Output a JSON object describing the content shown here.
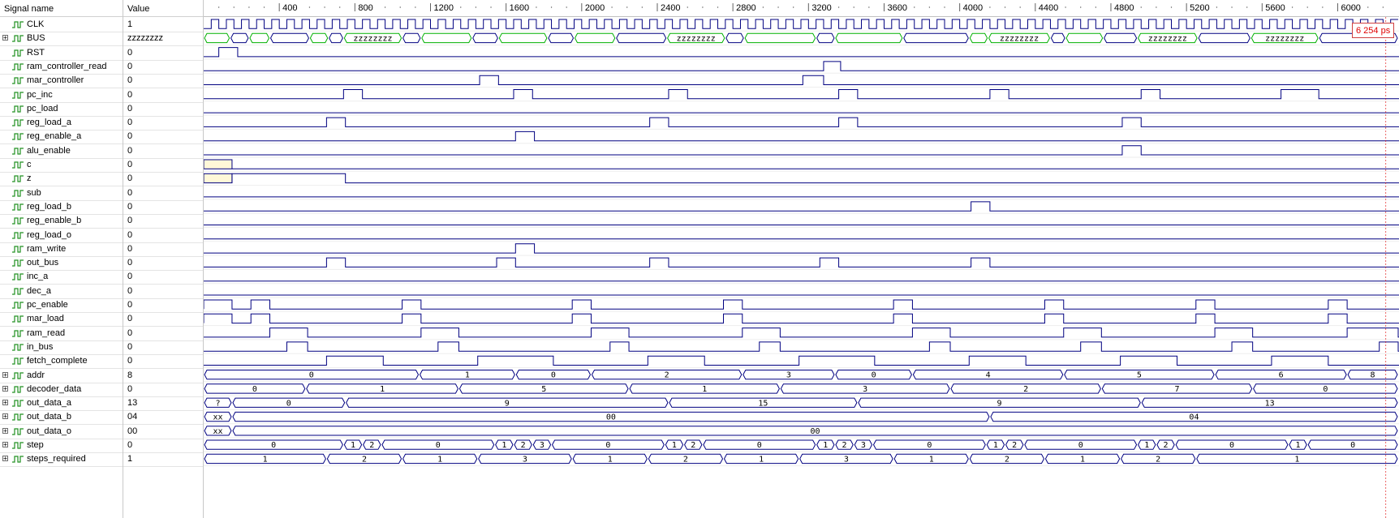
{
  "header": {
    "signal_name": "Signal name",
    "value": "Value"
  },
  "timeline": {
    "unit": "ps",
    "end_time": 6320,
    "labels": [
      400,
      800,
      1200,
      1600,
      2000,
      2400,
      2800,
      3200,
      3600,
      4000,
      4400,
      4800,
      5200,
      5600,
      6000
    ],
    "cursor_time": 6254,
    "cursor_label": "6 254 ps"
  },
  "colors": {
    "wave": "#000080",
    "highz": "#00b000",
    "unknown_fill": "#fff8d8",
    "cursor": "#e00000"
  },
  "signals": [
    {
      "name": "CLK",
      "value": "1",
      "kind": "clock",
      "period": 80,
      "expandable": false
    },
    {
      "name": "BUS",
      "value": "zzzzzzzz",
      "kind": "bus",
      "expandable": true,
      "segments": [
        {
          "t0": 0,
          "t1": 140,
          "label": "",
          "style": "green"
        },
        {
          "t0": 140,
          "t1": 240,
          "label": "",
          "style": "blue"
        },
        {
          "t0": 240,
          "t1": 350,
          "label": "",
          "style": "green"
        },
        {
          "t0": 350,
          "t1": 560,
          "label": "",
          "style": "blue"
        },
        {
          "t0": 560,
          "t1": 660,
          "label": "",
          "style": "green"
        },
        {
          "t0": 660,
          "t1": 740,
          "label": "",
          "style": "blue"
        },
        {
          "t0": 740,
          "t1": 1050,
          "label": "zzzzzzzz",
          "style": "green"
        },
        {
          "t0": 1050,
          "t1": 1150,
          "label": "",
          "style": "blue"
        },
        {
          "t0": 1150,
          "t1": 1420,
          "label": "",
          "style": "green"
        },
        {
          "t0": 1420,
          "t1": 1560,
          "label": "",
          "style": "blue"
        },
        {
          "t0": 1560,
          "t1": 1820,
          "label": "",
          "style": "green"
        },
        {
          "t0": 1820,
          "t1": 1960,
          "label": "",
          "style": "blue"
        },
        {
          "t0": 1960,
          "t1": 2180,
          "label": "",
          "style": "green"
        },
        {
          "t0": 2180,
          "t1": 2450,
          "label": "",
          "style": "blue"
        },
        {
          "t0": 2450,
          "t1": 2760,
          "label": "zzzzzzzz",
          "style": "green"
        },
        {
          "t0": 2760,
          "t1": 2860,
          "label": "",
          "style": "blue"
        },
        {
          "t0": 2860,
          "t1": 3240,
          "label": "",
          "style": "green"
        },
        {
          "t0": 3240,
          "t1": 3340,
          "label": "",
          "style": "blue"
        },
        {
          "t0": 3340,
          "t1": 3700,
          "label": "",
          "style": "green"
        },
        {
          "t0": 3700,
          "t1": 4050,
          "label": "",
          "style": "blue"
        },
        {
          "t0": 4050,
          "t1": 4150,
          "label": "",
          "style": "green"
        },
        {
          "t0": 4150,
          "t1": 4480,
          "label": "zzzzzzzz",
          "style": "green"
        },
        {
          "t0": 4480,
          "t1": 4560,
          "label": "",
          "style": "blue"
        },
        {
          "t0": 4560,
          "t1": 4760,
          "label": "",
          "style": "green"
        },
        {
          "t0": 4760,
          "t1": 4940,
          "label": "",
          "style": "blue"
        },
        {
          "t0": 4940,
          "t1": 5260,
          "label": "zzzzzzzz",
          "style": "green"
        },
        {
          "t0": 5260,
          "t1": 5540,
          "label": "",
          "style": "blue"
        },
        {
          "t0": 5540,
          "t1": 5900,
          "label": "zzzzzzzz",
          "style": "green"
        },
        {
          "t0": 5900,
          "t1": 6320,
          "label": "",
          "style": "blue"
        }
      ]
    },
    {
      "name": "RST",
      "value": "0",
      "kind": "bit",
      "expandable": false,
      "pulses": [
        [
          80,
          180
        ]
      ]
    },
    {
      "name": "ram_controller_read",
      "value": "0",
      "kind": "bit",
      "expandable": false,
      "pulses": [
        [
          3280,
          3370
        ]
      ]
    },
    {
      "name": "mar_controller",
      "value": "0",
      "kind": "bit",
      "expandable": false,
      "pulses": [
        [
          1460,
          1560
        ],
        [
          3170,
          3280
        ]
      ]
    },
    {
      "name": "pc_inc",
      "value": "0",
      "kind": "bit",
      "expandable": false,
      "pulses": [
        [
          740,
          840
        ],
        [
          1640,
          1740
        ],
        [
          2460,
          2560
        ],
        [
          3360,
          3460
        ],
        [
          4160,
          4260
        ],
        [
          4960,
          5060
        ],
        [
          5700,
          5900
        ]
      ]
    },
    {
      "name": "pc_load",
      "value": "0",
      "kind": "bit",
      "expandable": false,
      "pulses": []
    },
    {
      "name": "reg_load_a",
      "value": "0",
      "kind": "bit",
      "expandable": false,
      "pulses": [
        [
          650,
          750
        ],
        [
          2360,
          2460
        ],
        [
          3360,
          3460
        ],
        [
          4860,
          4960
        ]
      ]
    },
    {
      "name": "reg_enable_a",
      "value": "0",
      "kind": "bit",
      "expandable": false,
      "pulses": [
        [
          1650,
          1750
        ]
      ]
    },
    {
      "name": "alu_enable",
      "value": "0",
      "kind": "bit",
      "expandable": false,
      "pulses": [
        [
          4860,
          4960
        ]
      ]
    },
    {
      "name": "c",
      "value": "0",
      "kind": "bit",
      "expandable": false,
      "unknown": [
        0,
        150
      ],
      "pulses": []
    },
    {
      "name": "z",
      "value": "0",
      "kind": "bit",
      "expandable": false,
      "unknown": [
        0,
        150
      ],
      "pulses": [
        [
          0,
          750
        ]
      ]
    },
    {
      "name": "sub",
      "value": "0",
      "kind": "bit",
      "expandable": false,
      "pulses": []
    },
    {
      "name": "reg_load_b",
      "value": "0",
      "kind": "bit",
      "expandable": false,
      "pulses": [
        [
          4060,
          4160
        ]
      ]
    },
    {
      "name": "reg_enable_b",
      "value": "0",
      "kind": "bit",
      "expandable": false,
      "pulses": []
    },
    {
      "name": "reg_load_o",
      "value": "0",
      "kind": "bit",
      "expandable": false,
      "pulses": []
    },
    {
      "name": "ram_write",
      "value": "0",
      "kind": "bit",
      "expandable": false,
      "pulses": [
        [
          1650,
          1750
        ]
      ]
    },
    {
      "name": "out_bus",
      "value": "0",
      "kind": "bit",
      "expandable": false,
      "pulses": [
        [
          650,
          750
        ],
        [
          1550,
          1650
        ],
        [
          2360,
          2460
        ],
        [
          3260,
          3360
        ],
        [
          4060,
          4160
        ]
      ]
    },
    {
      "name": "inc_a",
      "value": "0",
      "kind": "bit",
      "expandable": false,
      "pulses": []
    },
    {
      "name": "dec_a",
      "value": "0",
      "kind": "bit",
      "expandable": false,
      "pulses": []
    },
    {
      "name": "pc_enable",
      "value": "0",
      "kind": "bit",
      "expandable": false,
      "pulses": [
        [
          0,
          150
        ],
        [
          250,
          350
        ],
        [
          1050,
          1150
        ],
        [
          1950,
          2050
        ],
        [
          2750,
          2850
        ],
        [
          3650,
          3750
        ],
        [
          4450,
          4550
        ],
        [
          5250,
          5350
        ],
        [
          5950,
          6050
        ]
      ]
    },
    {
      "name": "mar_load",
      "value": "0",
      "kind": "bit",
      "expandable": false,
      "pulses": [
        [
          0,
          150
        ],
        [
          250,
          350
        ],
        [
          1050,
          1150
        ],
        [
          1950,
          2050
        ],
        [
          2750,
          2850
        ],
        [
          3650,
          3750
        ],
        [
          4450,
          4550
        ],
        [
          5250,
          5350
        ],
        [
          5950,
          6050
        ]
      ]
    },
    {
      "name": "ram_read",
      "value": "0",
      "kind": "bit",
      "expandable": false,
      "pulses": [
        [
          350,
          550
        ],
        [
          1150,
          1350
        ],
        [
          2050,
          2250
        ],
        [
          2850,
          3050
        ],
        [
          3750,
          3950
        ],
        [
          4550,
          4750
        ],
        [
          5350,
          5550
        ],
        [
          6050,
          6320
        ]
      ]
    },
    {
      "name": "in_bus",
      "value": "0",
      "kind": "bit",
      "expandable": false,
      "pulses": [
        [
          440,
          550
        ],
        [
          1240,
          1350
        ],
        [
          2150,
          2250
        ],
        [
          2940,
          3050
        ],
        [
          3840,
          3950
        ],
        [
          4640,
          4750
        ],
        [
          5440,
          5550
        ],
        [
          6220,
          6320
        ]
      ]
    },
    {
      "name": "fetch_complete",
      "value": "0",
      "kind": "bit",
      "expandable": false,
      "pulses": [
        [
          650,
          950
        ],
        [
          1450,
          1850
        ],
        [
          2350,
          2650
        ],
        [
          3150,
          3550
        ],
        [
          4050,
          4350
        ],
        [
          4850,
          5150
        ],
        [
          5650,
          5950
        ]
      ]
    },
    {
      "name": "addr",
      "value": "8",
      "kind": "bus",
      "expandable": true,
      "segments": [
        {
          "t0": 0,
          "t1": 1140,
          "label": "0"
        },
        {
          "t0": 1140,
          "t1": 1650,
          "label": "1"
        },
        {
          "t0": 1650,
          "t1": 2050,
          "label": "0"
        },
        {
          "t0": 2050,
          "t1": 2850,
          "label": "2"
        },
        {
          "t0": 2850,
          "t1": 3340,
          "label": "3"
        },
        {
          "t0": 3340,
          "t1": 3750,
          "label": "0"
        },
        {
          "t0": 3750,
          "t1": 4550,
          "label": "4"
        },
        {
          "t0": 4550,
          "t1": 5350,
          "label": "5"
        },
        {
          "t0": 5350,
          "t1": 6050,
          "label": "6"
        },
        {
          "t0": 6050,
          "t1": 6320,
          "label": "8"
        }
      ]
    },
    {
      "name": "decoder_data",
      "value": "0",
      "kind": "bus",
      "expandable": true,
      "segments": [
        {
          "t0": 0,
          "t1": 540,
          "label": "0"
        },
        {
          "t0": 540,
          "t1": 1350,
          "label": "1"
        },
        {
          "t0": 1350,
          "t1": 2250,
          "label": "5"
        },
        {
          "t0": 2250,
          "t1": 3050,
          "label": "1"
        },
        {
          "t0": 3050,
          "t1": 3950,
          "label": "3"
        },
        {
          "t0": 3950,
          "t1": 4750,
          "label": "2"
        },
        {
          "t0": 4750,
          "t1": 5550,
          "label": "7"
        },
        {
          "t0": 5550,
          "t1": 6320,
          "label": "0"
        }
      ]
    },
    {
      "name": "out_data_a",
      "value": "13",
      "kind": "bus",
      "expandable": true,
      "segments": [
        {
          "t0": 0,
          "t1": 150,
          "label": "?"
        },
        {
          "t0": 150,
          "t1": 750,
          "label": "0"
        },
        {
          "t0": 750,
          "t1": 2460,
          "label": "9"
        },
        {
          "t0": 2460,
          "t1": 3460,
          "label": "15"
        },
        {
          "t0": 3460,
          "t1": 4960,
          "label": "9"
        },
        {
          "t0": 4960,
          "t1": 6320,
          "label": "13"
        }
      ]
    },
    {
      "name": "out_data_b",
      "value": "04",
      "kind": "bus",
      "expandable": true,
      "segments": [
        {
          "t0": 0,
          "t1": 150,
          "label": "xx"
        },
        {
          "t0": 150,
          "t1": 4160,
          "label": "00"
        },
        {
          "t0": 4160,
          "t1": 6320,
          "label": "04"
        }
      ]
    },
    {
      "name": "out_data_o",
      "value": "00",
      "kind": "bus",
      "expandable": true,
      "segments": [
        {
          "t0": 0,
          "t1": 150,
          "label": "xx"
        },
        {
          "t0": 150,
          "t1": 6320,
          "label": "00"
        }
      ]
    },
    {
      "name": "step",
      "value": "0",
      "kind": "bus",
      "expandable": true,
      "segments": [
        {
          "t0": 0,
          "t1": 740,
          "label": "0"
        },
        {
          "t0": 740,
          "t1": 840,
          "label": "1"
        },
        {
          "t0": 840,
          "t1": 940,
          "label": "2"
        },
        {
          "t0": 940,
          "t1": 1540,
          "label": "0"
        },
        {
          "t0": 1540,
          "t1": 1640,
          "label": "1"
        },
        {
          "t0": 1640,
          "t1": 1740,
          "label": "2"
        },
        {
          "t0": 1740,
          "t1": 1840,
          "label": "3"
        },
        {
          "t0": 1840,
          "t1": 2440,
          "label": "0"
        },
        {
          "t0": 2440,
          "t1": 2540,
          "label": "1"
        },
        {
          "t0": 2540,
          "t1": 2640,
          "label": "2"
        },
        {
          "t0": 2640,
          "t1": 3240,
          "label": "0"
        },
        {
          "t0": 3240,
          "t1": 3340,
          "label": "1"
        },
        {
          "t0": 3340,
          "t1": 3440,
          "label": "2"
        },
        {
          "t0": 3440,
          "t1": 3540,
          "label": "3"
        },
        {
          "t0": 3540,
          "t1": 4140,
          "label": "0"
        },
        {
          "t0": 4140,
          "t1": 4240,
          "label": "1"
        },
        {
          "t0": 4240,
          "t1": 4340,
          "label": "2"
        },
        {
          "t0": 4340,
          "t1": 4940,
          "label": "0"
        },
        {
          "t0": 4940,
          "t1": 5040,
          "label": "1"
        },
        {
          "t0": 5040,
          "t1": 5140,
          "label": "2"
        },
        {
          "t0": 5140,
          "t1": 5740,
          "label": "0"
        },
        {
          "t0": 5740,
          "t1": 5840,
          "label": "1"
        },
        {
          "t0": 5840,
          "t1": 6320,
          "label": "0"
        }
      ]
    },
    {
      "name": "steps_required",
      "value": "1",
      "kind": "bus",
      "expandable": true,
      "segments": [
        {
          "t0": 0,
          "t1": 650,
          "label": "1"
        },
        {
          "t0": 650,
          "t1": 1050,
          "label": "2"
        },
        {
          "t0": 1050,
          "t1": 1450,
          "label": "1"
        },
        {
          "t0": 1450,
          "t1": 1950,
          "label": "3"
        },
        {
          "t0": 1950,
          "t1": 2350,
          "label": "1"
        },
        {
          "t0": 2350,
          "t1": 2750,
          "label": "2"
        },
        {
          "t0": 2750,
          "t1": 3150,
          "label": "1"
        },
        {
          "t0": 3150,
          "t1": 3650,
          "label": "3"
        },
        {
          "t0": 3650,
          "t1": 4050,
          "label": "1"
        },
        {
          "t0": 4050,
          "t1": 4450,
          "label": "2"
        },
        {
          "t0": 4450,
          "t1": 4850,
          "label": "1"
        },
        {
          "t0": 4850,
          "t1": 5250,
          "label": "2"
        },
        {
          "t0": 5250,
          "t1": 6320,
          "label": "1"
        }
      ]
    }
  ]
}
